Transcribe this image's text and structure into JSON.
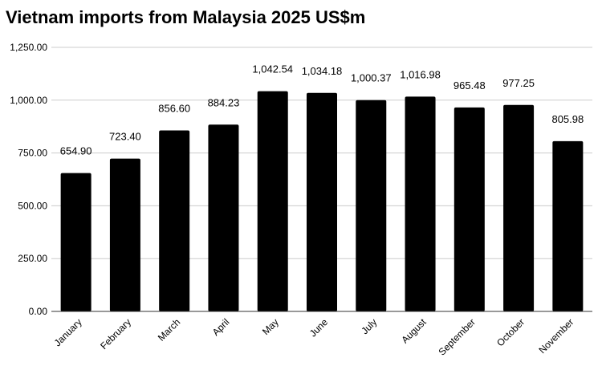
{
  "chart_data": {
    "type": "bar",
    "title": "Vietnam imports from Malaysia 2025 US$m",
    "xlabel": "",
    "ylabel": "",
    "categories": [
      "January",
      "February",
      "March",
      "April",
      "May",
      "June",
      "July",
      "August",
      "September",
      "October",
      "November"
    ],
    "values": [
      654.9,
      723.4,
      856.6,
      884.23,
      1042.54,
      1034.18,
      1000.37,
      1016.98,
      965.48,
      977.25,
      805.98
    ],
    "data_labels": [
      "654.90",
      "723.40",
      "856.60",
      "884.23",
      "1,042.54",
      "1,034.18",
      "1,000.37",
      "1,016.98",
      "965.48",
      "977.25",
      "805.98"
    ],
    "ylim": [
      0,
      1250
    ],
    "yticks": [
      0,
      250,
      500,
      750,
      1000,
      1250
    ],
    "ytick_labels": [
      "0.00",
      "250.00",
      "500.00",
      "750.00",
      "1,000.00",
      "1,250.00"
    ],
    "grid": true,
    "legend": "none",
    "bar_color": "#000000"
  }
}
